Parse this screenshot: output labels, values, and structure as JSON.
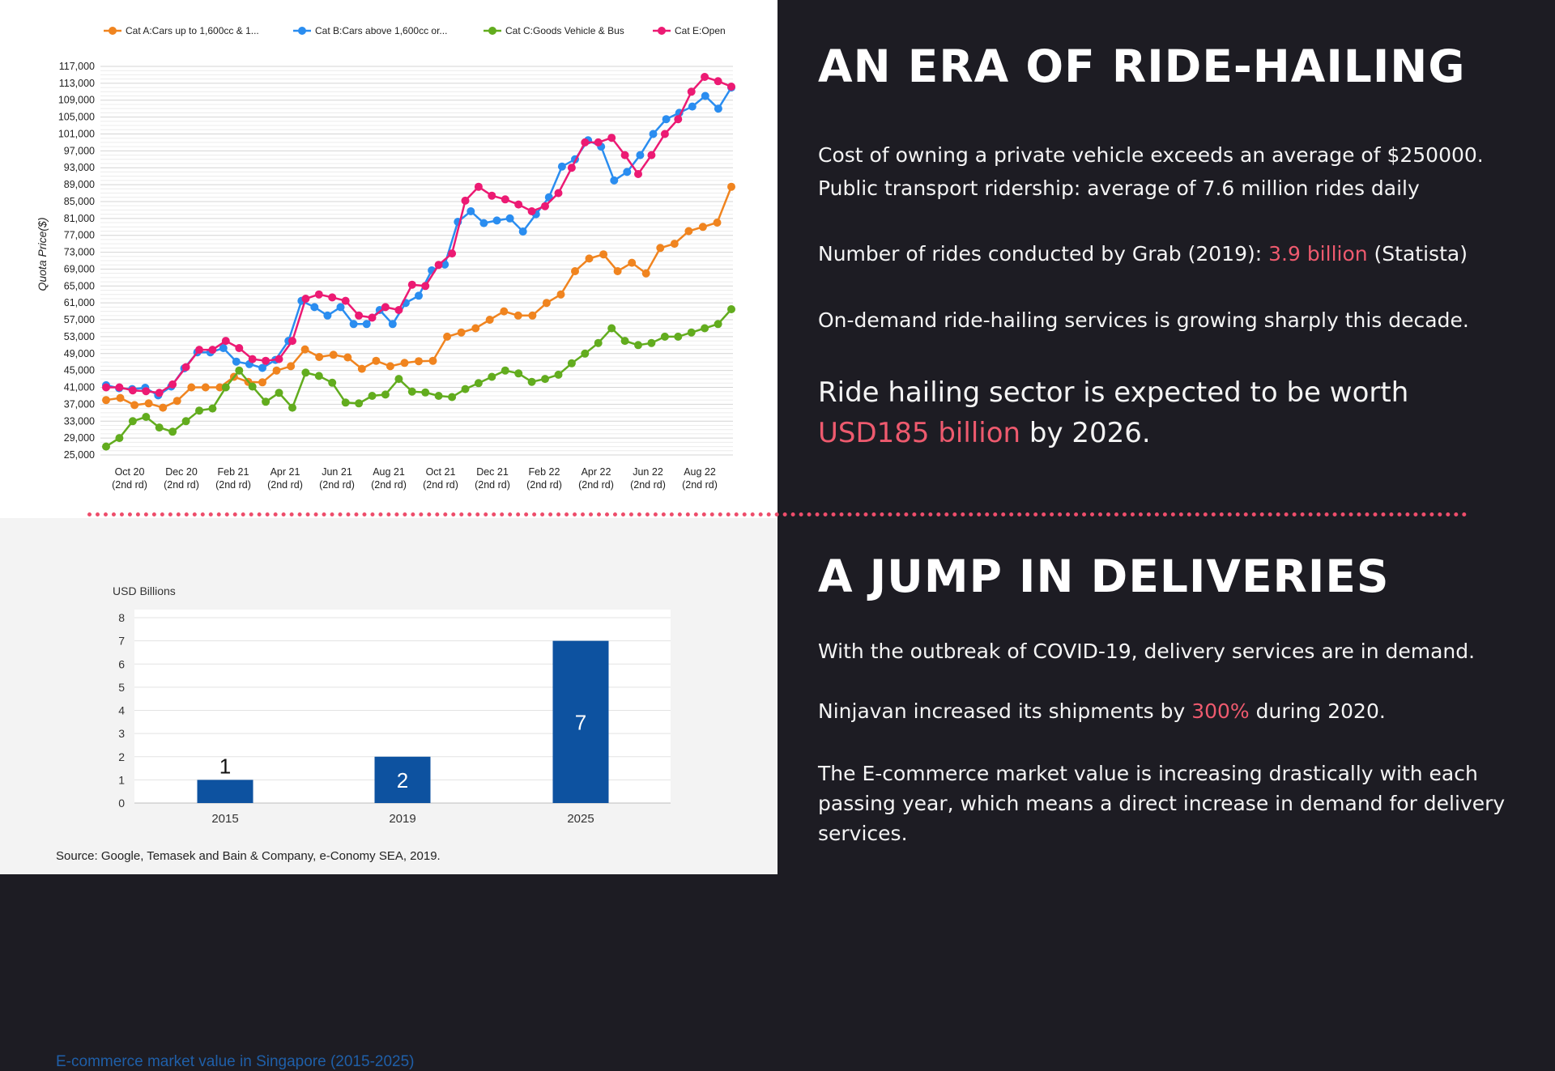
{
  "quota_chart": {
    "ylabel": "Quota Price($)",
    "yticks": [
      25000,
      29000,
      33000,
      37000,
      41000,
      45000,
      49000,
      53000,
      57000,
      61000,
      65000,
      69000,
      73000,
      77000,
      81000,
      85000,
      89000,
      93000,
      97000,
      101000,
      105000,
      109000,
      113000,
      117000
    ],
    "ytick_labels": [
      "25,000",
      "29,000",
      "33,000",
      "37,000",
      "41,000",
      "45,000",
      "49,000",
      "53,000",
      "57,000",
      "61,000",
      "65,000",
      "69,000",
      "73,000",
      "77,000",
      "81,000",
      "85,000",
      "89,000",
      "93,000",
      "97,000",
      "101,000",
      "105,000",
      "109,000",
      "113,000",
      "117,000"
    ],
    "xtick_labels": [
      {
        "month": "Oct 20",
        "round": "(2nd rd)"
      },
      {
        "month": "Dec 20",
        "round": "(2nd rd)"
      },
      {
        "month": "Feb 21",
        "round": "(2nd rd)"
      },
      {
        "month": "Apr 21",
        "round": "(2nd rd)"
      },
      {
        "month": "Jun 21",
        "round": "(2nd rd)"
      },
      {
        "month": "Aug 21",
        "round": "(2nd rd)"
      },
      {
        "month": "Oct 21",
        "round": "(2nd rd)"
      },
      {
        "month": "Dec 21",
        "round": "(2nd rd)"
      },
      {
        "month": "Feb 22",
        "round": "(2nd rd)"
      },
      {
        "month": "Apr 22",
        "round": "(2nd rd)"
      },
      {
        "month": "Jun 22",
        "round": "(2nd rd)"
      },
      {
        "month": "Aug 22",
        "round": "(2nd rd)"
      }
    ]
  },
  "chart_data": [
    {
      "type": "line",
      "title": "",
      "xlabel": "",
      "ylabel": "Quota Price($)",
      "ylim": [
        25000,
        117000
      ],
      "grid": true,
      "legend_position": "top",
      "x_labels": [
        "Oct 20 (2nd rd)",
        "Dec 20 (2nd rd)",
        "Feb 21 (2nd rd)",
        "Apr 21 (2nd rd)",
        "Jun 21 (2nd rd)",
        "Aug 21 (2nd rd)",
        "Oct 21 (2nd rd)",
        "Dec 21 (2nd rd)",
        "Feb 22 (2nd rd)",
        "Apr 22 (2nd rd)",
        "Jun 22 (2nd rd)",
        "Aug 22 (2nd rd)"
      ],
      "series": [
        {
          "name": "Cat A:Cars up to 1,600cc & 1...",
          "color": "#f0841f",
          "values": [
            38000,
            38500,
            36800,
            37200,
            36200,
            37800,
            41000,
            41000,
            41000,
            43500,
            42300,
            42200,
            45000,
            46000,
            50000,
            48200,
            48700,
            48100,
            45400,
            47300,
            46000,
            46800,
            47200,
            47300,
            53000,
            54000,
            55000,
            57000,
            59000,
            58000,
            58000,
            61000,
            63000,
            68500,
            71500,
            72500,
            68500,
            70500,
            68000,
            74000,
            75000,
            78000,
            79000,
            80000,
            88500
          ]
        },
        {
          "name": "Cat B:Cars above 1,600cc or...",
          "color": "#2a8df0",
          "values": [
            41500,
            40800,
            40600,
            40900,
            39100,
            41200,
            45500,
            49300,
            49300,
            50300,
            47100,
            46500,
            45600,
            47500,
            52000,
            61500,
            60000,
            58000,
            60000,
            56000,
            56000,
            59300,
            56000,
            61000,
            62700,
            68700,
            70100,
            80200,
            82700,
            79900,
            80500,
            81000,
            77900,
            82000,
            86000,
            93300,
            95000,
            99500,
            98000,
            90000,
            92000,
            96000,
            101000,
            104500,
            106000,
            107500,
            110000,
            107000,
            112000
          ]
        },
        {
          "name": "Cat C:Goods Vehicle & Bus",
          "color": "#62ac1e",
          "values": [
            27000,
            29000,
            33000,
            34000,
            31500,
            30500,
            33000,
            35500,
            36000,
            41000,
            45000,
            41200,
            37600,
            39700,
            36200,
            44500,
            43700,
            42100,
            37400,
            37200,
            39000,
            39300,
            43000,
            40000,
            39800,
            39000,
            38700,
            40600,
            42000,
            43500,
            45000,
            44300,
            42300,
            43000,
            44000,
            46700,
            49000,
            51500,
            55000,
            52000,
            51000,
            51500,
            53000,
            53000,
            54000,
            55000,
            56000,
            59500
          ]
        },
        {
          "name": "Cat E:Open",
          "color": "#ec1a73",
          "values": [
            41000,
            41000,
            40300,
            40100,
            39700,
            41700,
            45800,
            49900,
            49900,
            52000,
            50300,
            47700,
            47300,
            47700,
            52000,
            62000,
            63000,
            62300,
            61500,
            58000,
            57500,
            60000,
            59300,
            65300,
            65000,
            70000,
            72700,
            85200,
            88500,
            86400,
            85500,
            84300,
            82700,
            83900,
            87000,
            93000,
            99000,
            99000,
            100100,
            96000,
            91500,
            96000,
            101000,
            104500,
            111000,
            114500,
            113500,
            112200
          ]
        }
      ]
    },
    {
      "type": "bar",
      "title": "E-commerce market value in Singapore (2015-2025)",
      "xlabel": "",
      "ylabel": "USD Billions",
      "ylim": [
        0,
        8
      ],
      "grid": true,
      "categories": [
        "2015",
        "2019",
        "2025"
      ],
      "values": [
        1,
        2,
        7
      ],
      "color": "#0d52a0"
    }
  ],
  "ecommerce": {
    "title": "E-commerce market value in Singapore (2015-2025)",
    "ylabel": "USD Billions",
    "yticks": [
      "0",
      "1",
      "2",
      "3",
      "4",
      "5",
      "6",
      "7",
      "8"
    ],
    "source": "Source: Google, Temasek and Bain & Company, e-Conomy SEA, 2019."
  },
  "right": {
    "heading1": "AN ERA OF RIDE-HAILING",
    "line1": "Cost of owning a private vehicle exceeds an average of $250000.",
    "line2": "Public transport ridership: average of 7.6 million rides daily",
    "grab_prefix": "Number of rides conducted by Grab (2019): ",
    "grab_value": "3.9 billion",
    "grab_suffix": " (Statista)",
    "growth": "On-demand ride-hailing services is growing sharply this decade.",
    "sector_prefix": "Ride hailing sector is expected to be worth",
    "sector_value": "USD185 billion",
    "sector_suffix": " by 2026.",
    "heading2": "A JUMP IN DELIVERIES",
    "covid": "With the outbreak of COVID-19, delivery services are in demand.",
    "ninja_prefix": "Ninjavan increased its shipments by ",
    "ninja_value": "300%",
    "ninja_suffix": " during 2020.",
    "ecom_text": "The E-commerce market value is increasing drastically with each passing year, which means a direct increase in demand for delivery services."
  }
}
